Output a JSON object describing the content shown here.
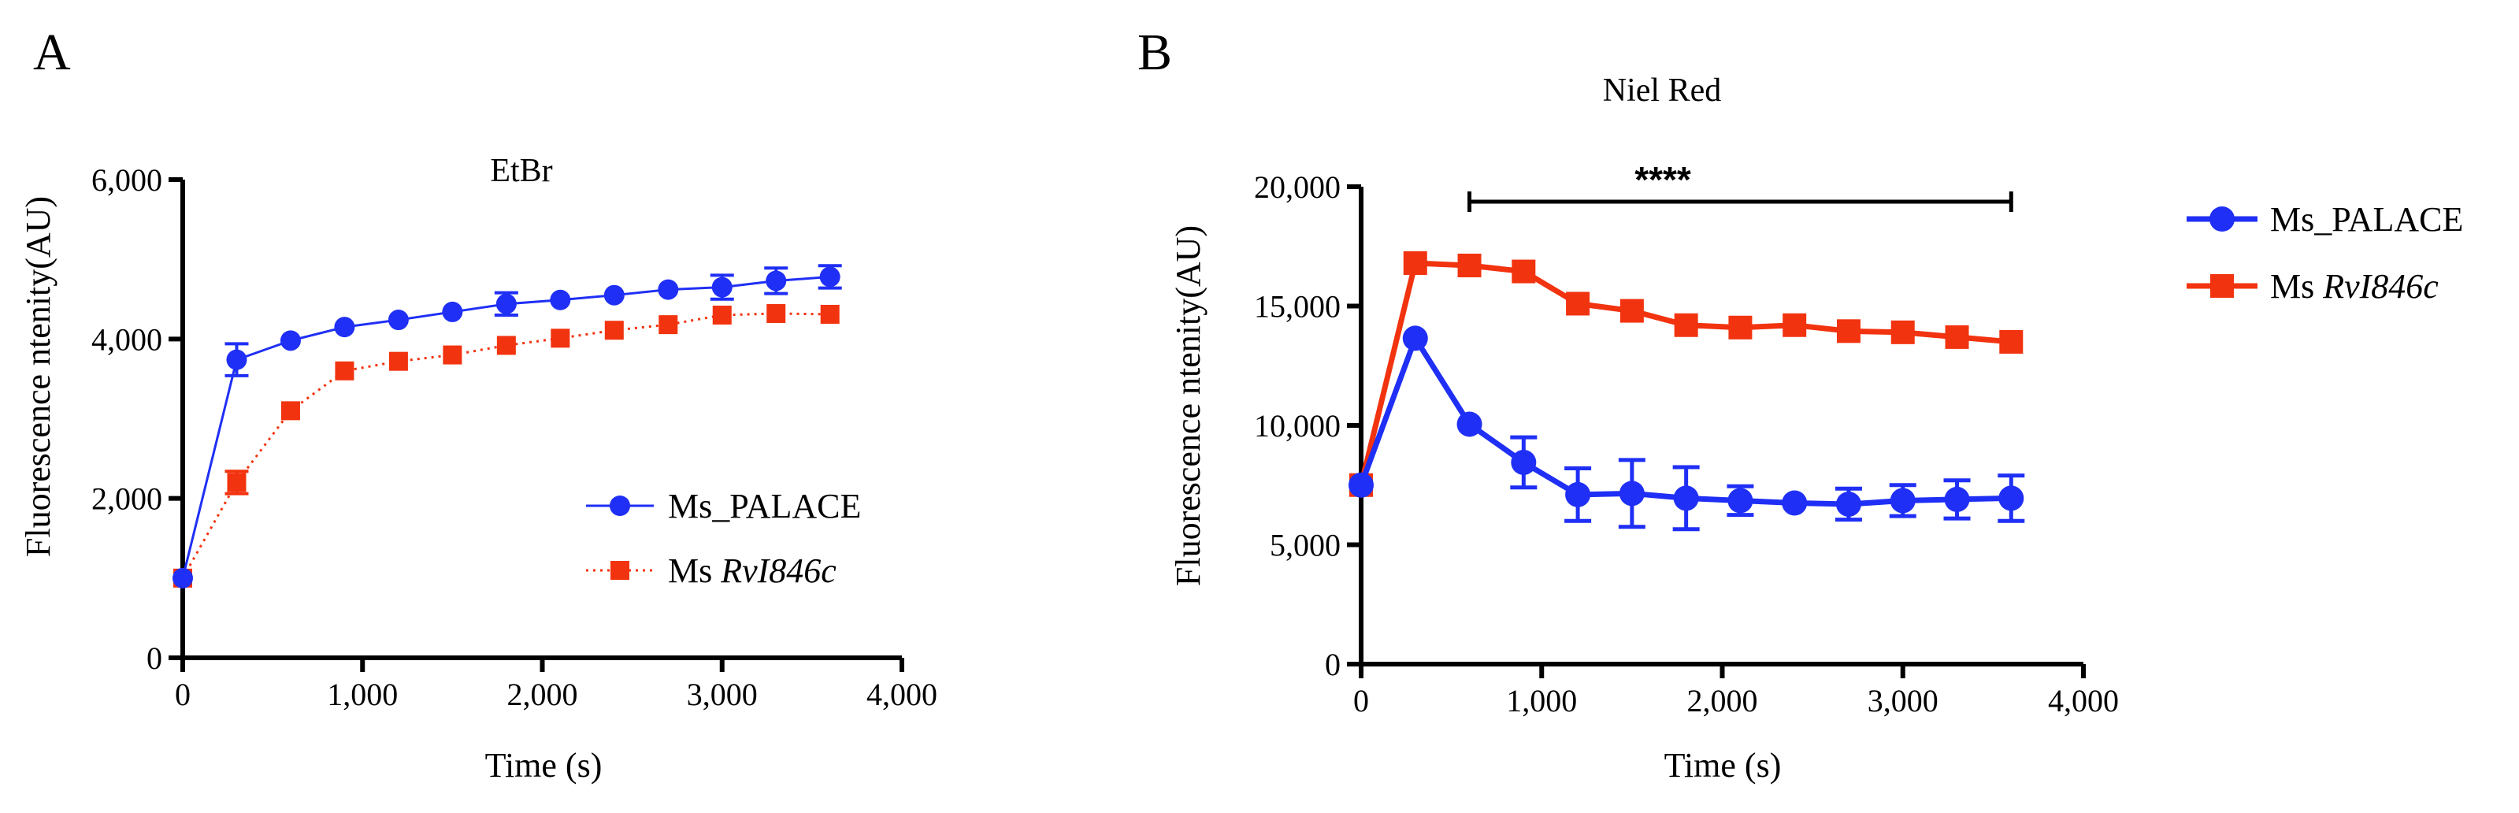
{
  "figure": {
    "panels": [
      "A",
      "B"
    ]
  },
  "chart_data": [
    {
      "panel": "A",
      "type": "line",
      "title": "EtBr",
      "xlabel": "Time  (s)",
      "ylabel": "Fluorescence ntenity(AU)",
      "xlim": [
        0,
        4000
      ],
      "ylim": [
        0,
        6000
      ],
      "xticks": [
        0,
        1000,
        2000,
        3000,
        4000
      ],
      "xtick_labels": [
        "0",
        "1,000",
        "2,000",
        "3,000",
        "4,000"
      ],
      "yticks": [
        0,
        2000,
        4000,
        6000
      ],
      "ytick_labels": [
        "0",
        "2,000",
        "4,000",
        "6,000"
      ],
      "legend_position": "center-right",
      "x": [
        0,
        300,
        600,
        900,
        1200,
        1500,
        1800,
        2100,
        2400,
        2700,
        3000,
        3300,
        3600
      ],
      "series": [
        {
          "name": "Ms_PALACE",
          "italic_part": "",
          "marker": "circle",
          "line": "solid",
          "color": "#1f2ff5",
          "values": [
            1000,
            3740,
            3980,
            4150,
            4240,
            4340,
            4440,
            4490,
            4550,
            4620,
            4650,
            4730,
            4780
          ],
          "errors": [
            0,
            200,
            0,
            0,
            0,
            0,
            140,
            0,
            0,
            0,
            150,
            160,
            140
          ]
        },
        {
          "name": "Ms ",
          "italic_part": "RvI846c",
          "marker": "square",
          "line": "dotted",
          "color": "#f2330f",
          "values": [
            1000,
            2200,
            3100,
            3600,
            3720,
            3800,
            3920,
            4010,
            4110,
            4180,
            4300,
            4320,
            4310
          ],
          "errors": [
            0,
            140,
            0,
            0,
            0,
            0,
            0,
            0,
            0,
            0,
            0,
            0,
            0
          ]
        }
      ]
    },
    {
      "panel": "B",
      "type": "line",
      "title": "Niel Red",
      "xlabel": "Time  (s)",
      "ylabel": "Fluorescence ntenity(AU)",
      "xlim": [
        0,
        4000
      ],
      "ylim": [
        0,
        20000
      ],
      "xticks": [
        0,
        1000,
        2000,
        3000,
        4000
      ],
      "xtick_labels": [
        "0",
        "1,000",
        "2,000",
        "3,000",
        "4,000"
      ],
      "yticks": [
        0,
        5000,
        10000,
        15000,
        20000
      ],
      "ytick_labels": [
        "0",
        "5,000",
        "10,000",
        "15,000",
        "20,000"
      ],
      "legend_position": "top-right, outside",
      "significance": {
        "label": "****",
        "x_start": 600,
        "x_end": 3600
      },
      "x": [
        0,
        300,
        600,
        900,
        1200,
        1500,
        1800,
        2100,
        2400,
        2700,
        3000,
        3300,
        3600
      ],
      "series": [
        {
          "name": "Ms_PALACE",
          "italic_part": "",
          "marker": "circle",
          "line": "solid",
          "color": "#1f2ff5",
          "values": [
            7500,
            13650,
            10050,
            8450,
            7100,
            7150,
            6950,
            6850,
            6750,
            6700,
            6850,
            6900,
            6950
          ],
          "errors": [
            0,
            0,
            0,
            1050,
            1100,
            1400,
            1300,
            600,
            0,
            650,
            650,
            800,
            950
          ]
        },
        {
          "name": "Ms ",
          "italic_part": "RvI846c",
          "marker": "square",
          "line": "solid",
          "color": "#f2330f",
          "values": [
            7500,
            16800,
            16700,
            16450,
            15100,
            14800,
            14200,
            14100,
            14200,
            13950,
            13900,
            13700,
            13500
          ],
          "errors": [
            0,
            0,
            0,
            0,
            0,
            0,
            0,
            0,
            0,
            0,
            0,
            0,
            0
          ]
        }
      ]
    }
  ]
}
